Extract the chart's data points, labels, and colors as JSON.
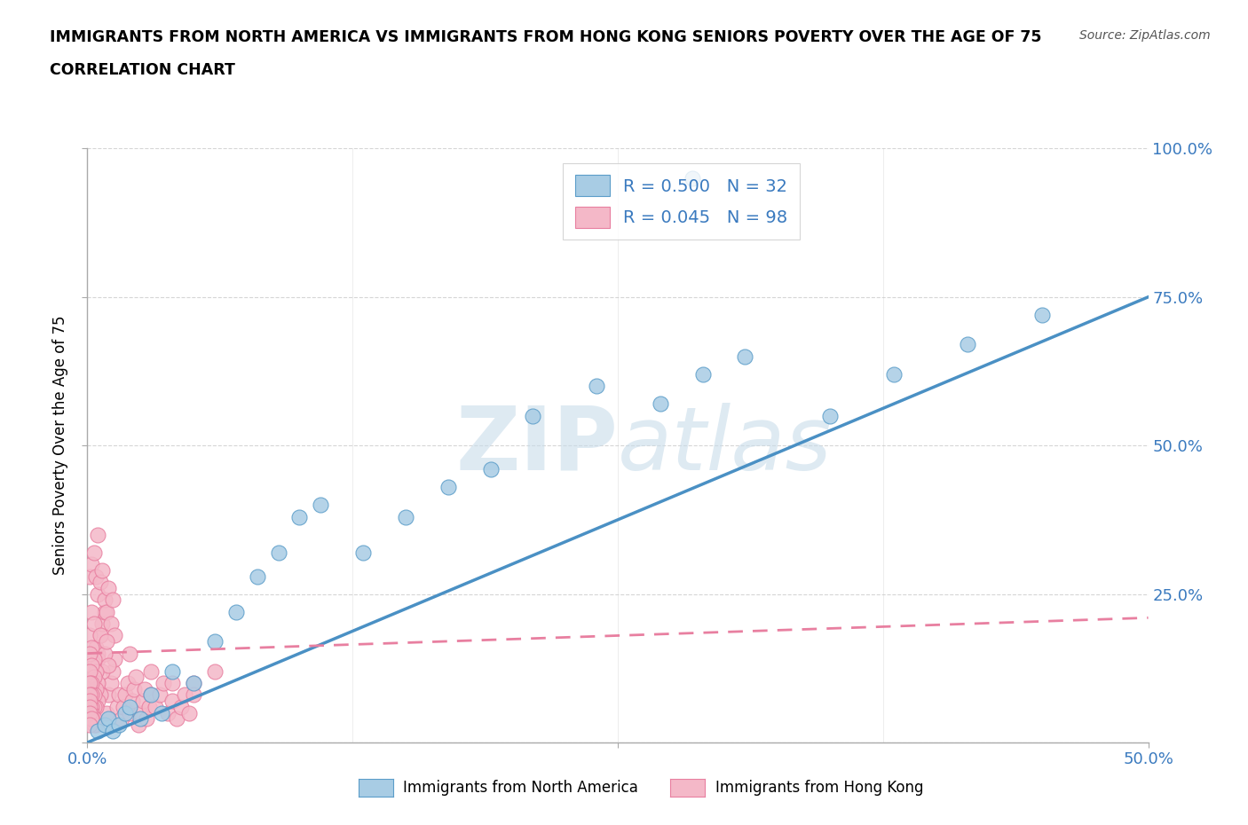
{
  "title_line1": "IMMIGRANTS FROM NORTH AMERICA VS IMMIGRANTS FROM HONG KONG SENIORS POVERTY OVER THE AGE OF 75",
  "title_line2": "CORRELATION CHART",
  "source": "Source: ZipAtlas.com",
  "ylabel": "Seniors Poverty Over the Age of 75",
  "xlim": [
    0,
    0.5
  ],
  "ylim": [
    0,
    1.0
  ],
  "north_america_R": 0.5,
  "north_america_N": 32,
  "hong_kong_R": 0.045,
  "hong_kong_N": 98,
  "blue_color": "#a8cce4",
  "pink_color": "#f4b8c8",
  "blue_edge": "#5b9dc9",
  "pink_edge": "#e87fa0",
  "blue_line": "#4a90c4",
  "pink_line": "#e87fa0",
  "watermark_color": "#c8dcea",
  "legend_label1": "Immigrants from North America",
  "legend_label2": "Immigrants from Hong Kong",
  "na_trend_x": [
    0.0,
    0.5
  ],
  "na_trend_y": [
    0.0,
    0.75
  ],
  "hk_trend_x": [
    0.0,
    0.5
  ],
  "hk_trend_y": [
    0.15,
    0.21
  ],
  "north_america_x": [
    0.005,
    0.008,
    0.01,
    0.012,
    0.015,
    0.018,
    0.02,
    0.025,
    0.03,
    0.035,
    0.04,
    0.05,
    0.06,
    0.07,
    0.08,
    0.09,
    0.1,
    0.11,
    0.13,
    0.15,
    0.17,
    0.19,
    0.21,
    0.24,
    0.27,
    0.29,
    0.31,
    0.35,
    0.38,
    0.415,
    0.45,
    0.285
  ],
  "north_america_y": [
    0.02,
    0.03,
    0.04,
    0.02,
    0.03,
    0.05,
    0.06,
    0.04,
    0.08,
    0.05,
    0.12,
    0.1,
    0.17,
    0.22,
    0.28,
    0.32,
    0.38,
    0.4,
    0.32,
    0.38,
    0.43,
    0.46,
    0.55,
    0.6,
    0.57,
    0.62,
    0.65,
    0.55,
    0.62,
    0.67,
    0.72,
    0.95
  ],
  "hong_kong_x": [
    0.001,
    0.002,
    0.003,
    0.004,
    0.005,
    0.006,
    0.007,
    0.008,
    0.009,
    0.01,
    0.011,
    0.012,
    0.013,
    0.014,
    0.015,
    0.016,
    0.017,
    0.018,
    0.019,
    0.02,
    0.021,
    0.022,
    0.023,
    0.024,
    0.025,
    0.026,
    0.027,
    0.028,
    0.029,
    0.03,
    0.032,
    0.034,
    0.036,
    0.038,
    0.04,
    0.042,
    0.044,
    0.046,
    0.048,
    0.05,
    0.001,
    0.002,
    0.003,
    0.004,
    0.005,
    0.006,
    0.007,
    0.008,
    0.009,
    0.01,
    0.011,
    0.012,
    0.013,
    0.001,
    0.002,
    0.003,
    0.004,
    0.005,
    0.006,
    0.007,
    0.008,
    0.009,
    0.01,
    0.002,
    0.003,
    0.004,
    0.005,
    0.006,
    0.001,
    0.002,
    0.003,
    0.004,
    0.005,
    0.001,
    0.002,
    0.003,
    0.004,
    0.001,
    0.002,
    0.003,
    0.001,
    0.002,
    0.001,
    0.002,
    0.003,
    0.004,
    0.001,
    0.002,
    0.003,
    0.001,
    0.002,
    0.001,
    0.02,
    0.03,
    0.04,
    0.05,
    0.06,
    0.005
  ],
  "hong_kong_y": [
    0.05,
    0.08,
    0.1,
    0.12,
    0.15,
    0.18,
    0.2,
    0.22,
    0.05,
    0.08,
    0.1,
    0.12,
    0.14,
    0.06,
    0.08,
    0.04,
    0.06,
    0.08,
    0.1,
    0.05,
    0.07,
    0.09,
    0.11,
    0.03,
    0.05,
    0.07,
    0.09,
    0.04,
    0.06,
    0.08,
    0.06,
    0.08,
    0.1,
    0.05,
    0.07,
    0.04,
    0.06,
    0.08,
    0.05,
    0.1,
    0.28,
    0.3,
    0.32,
    0.28,
    0.25,
    0.27,
    0.29,
    0.24,
    0.22,
    0.26,
    0.2,
    0.24,
    0.18,
    0.18,
    0.22,
    0.2,
    0.16,
    0.14,
    0.18,
    0.12,
    0.15,
    0.17,
    0.13,
    0.16,
    0.14,
    0.12,
    0.1,
    0.08,
    0.15,
    0.13,
    0.11,
    0.09,
    0.07,
    0.12,
    0.1,
    0.08,
    0.06,
    0.1,
    0.08,
    0.06,
    0.08,
    0.06,
    0.07,
    0.05,
    0.04,
    0.03,
    0.06,
    0.04,
    0.03,
    0.05,
    0.04,
    0.03,
    0.15,
    0.12,
    0.1,
    0.08,
    0.12,
    0.35
  ]
}
